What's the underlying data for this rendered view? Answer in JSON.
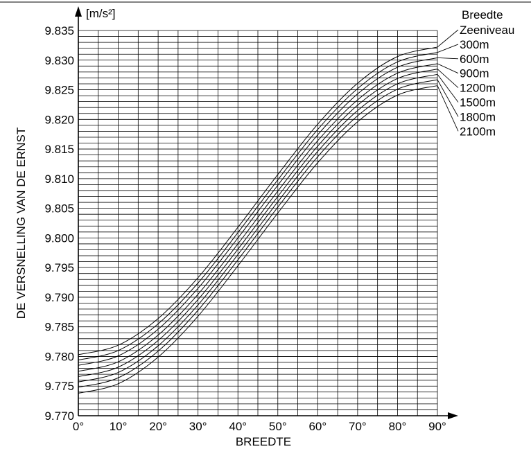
{
  "chart_data": {
    "type": "line",
    "title": "",
    "xlabel": "BREEDTE",
    "ylabel": "DE VERSNELLING VAN DE ERNST",
    "y_unit": "[m/s²]",
    "xlim": [
      0,
      90
    ],
    "ylim": [
      9.77,
      9.835
    ],
    "x_ticks": [
      "0°",
      "10°",
      "20°",
      "30°",
      "40°",
      "50°",
      "60°",
      "70°",
      "80°",
      "90°"
    ],
    "x_tick_values": [
      0,
      10,
      20,
      30,
      40,
      50,
      60,
      70,
      80,
      90
    ],
    "y_ticks": [
      "9.770",
      "9.775",
      "9.780",
      "9.785",
      "9.790",
      "9.795",
      "9.800",
      "9.805",
      "9.810",
      "9.815",
      "9.820",
      "9.825",
      "9.830",
      "9.835"
    ],
    "y_tick_values": [
      9.77,
      9.775,
      9.78,
      9.785,
      9.79,
      9.795,
      9.8,
      9.805,
      9.81,
      9.815,
      9.82,
      9.825,
      9.83,
      9.835
    ],
    "grid": true,
    "legend_title": "Breedte",
    "legend_position": "top-right",
    "x": [
      0,
      10,
      20,
      30,
      40,
      50,
      60,
      70,
      80,
      90
    ],
    "series": [
      {
        "name": "Zeeniveau",
        "values": [
          9.7803,
          9.7819,
          9.7864,
          9.7933,
          9.8018,
          9.8107,
          9.8192,
          9.8261,
          9.8306,
          9.8322
        ]
      },
      {
        "name": "300m",
        "values": [
          9.7794,
          9.781,
          9.7855,
          9.7924,
          9.8009,
          9.8098,
          9.8183,
          9.8252,
          9.8297,
          9.8313
        ]
      },
      {
        "name": "600m",
        "values": [
          9.7785,
          9.7801,
          9.7846,
          9.7915,
          9.8,
          9.8089,
          9.8174,
          9.8243,
          9.8288,
          9.8304
        ]
      },
      {
        "name": "900m",
        "values": [
          9.7775,
          9.7791,
          9.7836,
          9.7905,
          9.799,
          9.8079,
          9.8164,
          9.8233,
          9.8278,
          9.8294
        ]
      },
      {
        "name": "1200m",
        "values": [
          9.7766,
          9.7782,
          9.7827,
          9.7896,
          9.7981,
          9.807,
          9.8155,
          9.8224,
          9.8269,
          9.8285
        ]
      },
      {
        "name": "1500m",
        "values": [
          9.7757,
          9.7773,
          9.7818,
          9.7887,
          9.7972,
          9.8061,
          9.8146,
          9.8215,
          9.826,
          9.8276
        ]
      },
      {
        "name": "1800m",
        "values": [
          9.7748,
          9.7764,
          9.7809,
          9.7878,
          9.7963,
          9.8052,
          9.8137,
          9.8206,
          9.8251,
          9.8267
        ]
      },
      {
        "name": "2100m",
        "values": [
          9.7738,
          9.7754,
          9.7799,
          9.7868,
          9.7953,
          9.8042,
          9.8127,
          9.8196,
          9.8241,
          9.8257
        ]
      }
    ],
    "line_color": "#000000"
  }
}
